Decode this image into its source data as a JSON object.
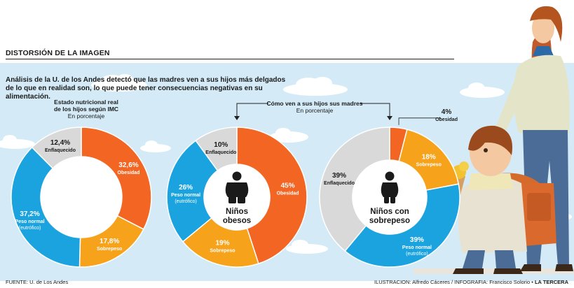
{
  "header": {
    "title": "DISTORSIÓN DE LA IMAGEN",
    "subtitle": "Análisis de la U. de los Andes detectó que las madres ven a sus hijos más delgados de lo que en realidad son, lo que puede tener consecuencias negativas en su alimentación."
  },
  "section_labels": {
    "left_title_1": "Estado nutricional real",
    "left_title_2": "de los hijos según IMC",
    "left_unit": "En porcentaje",
    "right_title": "Cómo ven a sus hijos sus madres",
    "right_unit": "En porcentaje"
  },
  "footer": {
    "source": "FUENTE: U. de Los Andes",
    "credits": "ILUSTRACION: Alfredo Cáceres / INFOGRAFIA: Francisco Solorio •",
    "brand": "LA TERCERA"
  },
  "colors": {
    "obesidad": "#f26522",
    "sobrepeso": "#f7a21b",
    "peso_normal": "#1ba3e0",
    "enflaquecido": "#d9d9d9",
    "sky": "#d4ebf7",
    "center": "#ffffff"
  },
  "chart_data": [
    {
      "type": "pie",
      "title": "Estado nutricional real de los hijos según IMC",
      "unit": "En porcentaje",
      "center_label": "",
      "center_icon": "",
      "slices": [
        {
          "key": "obesidad",
          "value_label": "32,6%",
          "name": "Obesidad",
          "value": 32.6
        },
        {
          "key": "sobrepeso",
          "value_label": "17,8%",
          "name": "Sobrepeso",
          "value": 17.8
        },
        {
          "key": "peso_normal",
          "value_label": "37,2%",
          "name": "Peso normal",
          "subname": "(eutrófico)",
          "value": 37.2
        },
        {
          "key": "enflaquecido",
          "value_label": "12,4%",
          "name": "Enflaquecido",
          "value": 12.4
        }
      ]
    },
    {
      "type": "pie",
      "title": "Cómo ven a sus hijos sus madres",
      "unit": "En porcentaje",
      "center_label": [
        "Niños",
        "obesos"
      ],
      "center_icon": "obese-child-icon",
      "slices": [
        {
          "key": "obesidad",
          "value_label": "45%",
          "name": "Obesidad",
          "value": 45
        },
        {
          "key": "sobrepeso",
          "value_label": "19%",
          "name": "Sobrepeso",
          "value": 19
        },
        {
          "key": "peso_normal",
          "value_label": "26%",
          "name": "Peso normal",
          "subname": "(eutrófico)",
          "value": 26
        },
        {
          "key": "enflaquecido",
          "value_label": "10%",
          "name": "Enflaquecido",
          "value": 10
        }
      ]
    },
    {
      "type": "pie",
      "title": "Cómo ven a sus hijos sus madres",
      "unit": "En porcentaje",
      "center_label": [
        "Niños con",
        "sobrepeso"
      ],
      "center_icon": "overweight-child-icon",
      "slices": [
        {
          "key": "obesidad",
          "value_label": "4%",
          "name": "Obesidad",
          "value": 4
        },
        {
          "key": "sobrepeso",
          "value_label": "18%",
          "name": "Sobrepeso",
          "value": 18
        },
        {
          "key": "peso_normal",
          "value_label": "39%",
          "name": "Peso normal",
          "subname": "(eutrófico)",
          "value": 39
        },
        {
          "key": "enflaquecido",
          "value_label": "39%",
          "name": "Enflaquecido",
          "value": 39
        }
      ]
    }
  ]
}
